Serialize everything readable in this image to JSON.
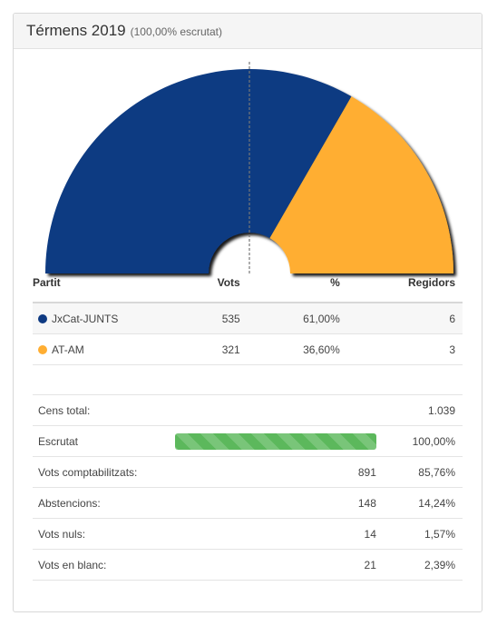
{
  "header": {
    "title": "Térmens 2019",
    "subtitle": "(100,00% escrutat)"
  },
  "chart_data": {
    "type": "pie",
    "shape": "half-donut",
    "series": [
      {
        "name": "JxCat-JUNTS",
        "seats": 6,
        "color": "#0e3a82"
      },
      {
        "name": "AT-AM",
        "seats": 3,
        "color": "#ffae32"
      }
    ],
    "majority_line": true
  },
  "results": {
    "headers": {
      "party": "Partit",
      "votes": "Vots",
      "pct": "%",
      "seats": "Regidors"
    },
    "rows": [
      {
        "party": "JxCat-JUNTS",
        "color": "#0e3a82",
        "votes": "535",
        "pct": "61,00%",
        "seats": "6"
      },
      {
        "party": "AT-AM",
        "color": "#ffae32",
        "votes": "321",
        "pct": "36,60%",
        "seats": "3"
      }
    ]
  },
  "stats": {
    "census": {
      "label": "Cens total:",
      "value": "1.039"
    },
    "counted": {
      "label": "Escrutat",
      "value": "100,00%",
      "progress": 100
    },
    "valid_votes": {
      "label": "Vots comptabilitzats:",
      "count": "891",
      "pct": "85,76%"
    },
    "abstentions": {
      "label": "Abstencions:",
      "count": "148",
      "pct": "14,24%"
    },
    "null_votes": {
      "label": "Vots nuls:",
      "count": "14",
      "pct": "1,57%"
    },
    "blank_votes": {
      "label": "Vots en blanc:",
      "count": "21",
      "pct": "2,39%"
    }
  }
}
